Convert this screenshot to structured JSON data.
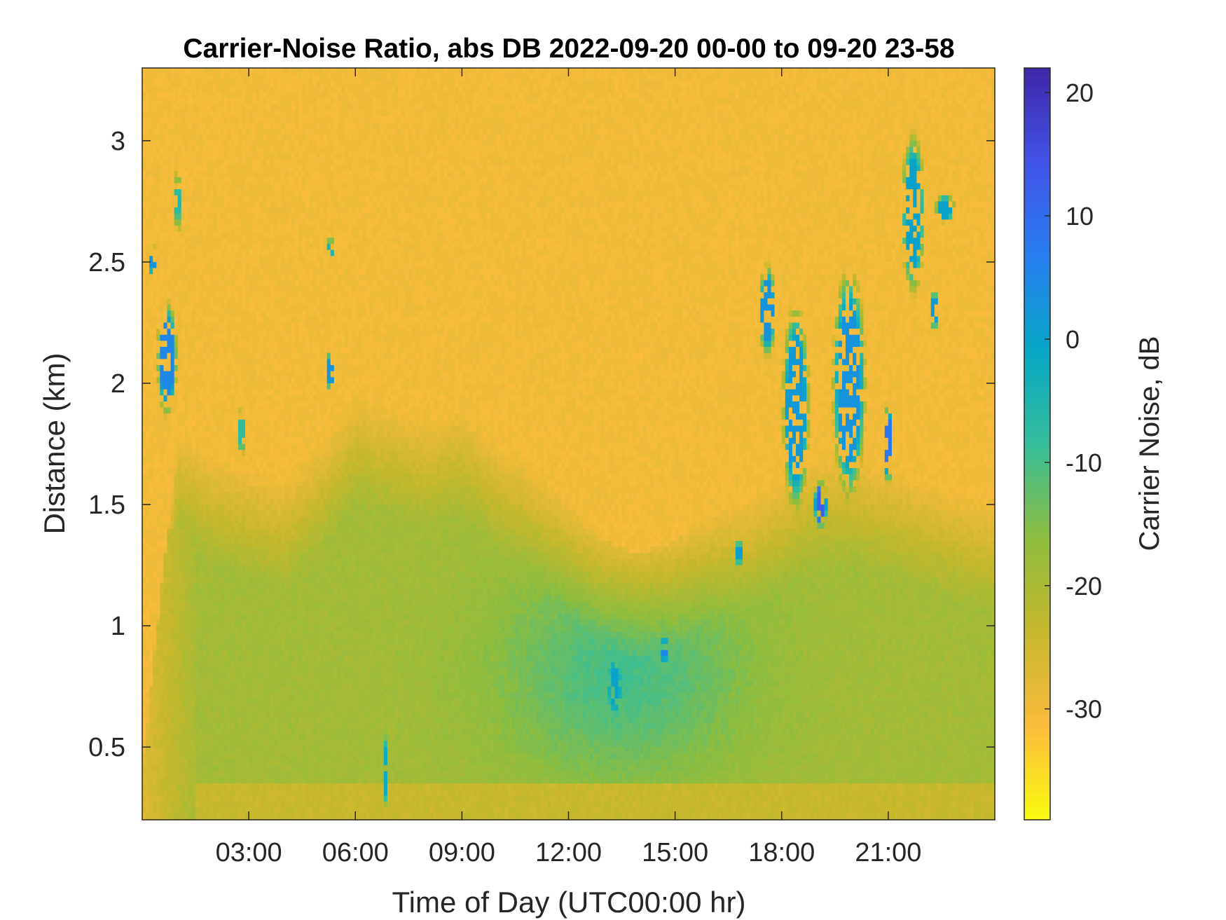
{
  "chart_data": {
    "type": "heatmap",
    "title": "Carrier-Noise Ratio, abs DB 2022-09-20 00-00 to 09-20 23-58",
    "xlabel": "Time of Day (UTC00:00 hr)",
    "ylabel": "Distance (km)",
    "colorbar_label": "Carrier Noise, dB",
    "x_units": "hours",
    "xlim": [
      0,
      24
    ],
    "ylim": [
      0.2,
      3.3
    ],
    "clim": [
      -39,
      22
    ],
    "x_ticks": [
      {
        "value": 3,
        "label": "03:00"
      },
      {
        "value": 6,
        "label": "06:00"
      },
      {
        "value": 9,
        "label": "09:00"
      },
      {
        "value": 12,
        "label": "12:00"
      },
      {
        "value": 15,
        "label": "15:00"
      },
      {
        "value": 18,
        "label": "18:00"
      },
      {
        "value": 21,
        "label": "21:00"
      }
    ],
    "y_ticks": [
      {
        "value": 0.5,
        "label": "0.5"
      },
      {
        "value": 1,
        "label": "1"
      },
      {
        "value": 1.5,
        "label": "1.5"
      },
      {
        "value": 2,
        "label": "2"
      },
      {
        "value": 2.5,
        "label": "2.5"
      },
      {
        "value": 3,
        "label": "3"
      }
    ],
    "colorbar_ticks": [
      {
        "value": 20,
        "label": "20"
      },
      {
        "value": 10,
        "label": "10"
      },
      {
        "value": 0,
        "label": "0"
      },
      {
        "value": -10,
        "label": "-10"
      },
      {
        "value": -20,
        "label": "-20"
      },
      {
        "value": -30,
        "label": "-30"
      }
    ],
    "colormap": "parula-reversed",
    "colormap_stops": [
      "#f9fb0e",
      "#fbbc3d",
      "#c6b82c",
      "#8ebd3e",
      "#35be9b",
      "#06a7c6",
      "#277ef1",
      "#4253e8",
      "#3e26a8"
    ],
    "background_level_dB": -30,
    "boundary_layer_top_km": [
      [
        0,
        0.4
      ],
      [
        1,
        1.8
      ],
      [
        2,
        1.7
      ],
      [
        3,
        1.65
      ],
      [
        4,
        1.6
      ],
      [
        5,
        1.75
      ],
      [
        6,
        1.95
      ],
      [
        7,
        1.9
      ],
      [
        8,
        1.85
      ],
      [
        9,
        1.9
      ],
      [
        10,
        1.75
      ],
      [
        11,
        1.65
      ],
      [
        12,
        1.5
      ],
      [
        13,
        1.35
      ],
      [
        14,
        1.3
      ],
      [
        15,
        1.35
      ],
      [
        16,
        1.45
      ],
      [
        17,
        1.5
      ],
      [
        18,
        1.6
      ],
      [
        19,
        1.7
      ],
      [
        20,
        1.7
      ],
      [
        21,
        1.65
      ],
      [
        22,
        1.6
      ],
      [
        23,
        1.55
      ],
      [
        24,
        1.5
      ]
    ],
    "features": [
      {
        "name": "cloud-0h",
        "t": 0.7,
        "d": 2.1,
        "width_h": 0.6,
        "height_km": 0.5,
        "value": 5
      },
      {
        "name": "cloud-0h-high",
        "t": 0.3,
        "d": 2.5,
        "width_h": 0.2,
        "height_km": 0.15,
        "value": 2
      },
      {
        "name": "cloud-0h-top",
        "t": 1.0,
        "d": 2.75,
        "width_h": 0.15,
        "height_km": 0.35,
        "value": -2
      },
      {
        "name": "cloud-2.8h",
        "t": 2.8,
        "d": 1.8,
        "width_h": 0.3,
        "height_km": 0.2,
        "value": -8
      },
      {
        "name": "cloud-5.3h",
        "t": 5.3,
        "d": 2.05,
        "width_h": 0.2,
        "height_km": 0.2,
        "value": 3
      },
      {
        "name": "cloud-5.3h-high",
        "t": 5.3,
        "d": 2.55,
        "width_h": 0.15,
        "height_km": 0.15,
        "value": 0
      },
      {
        "name": "plume-6.8h",
        "t": 6.85,
        "d": 0.4,
        "width_h": 0.15,
        "height_km": 0.3,
        "value": -2
      },
      {
        "name": "low-13.3h",
        "t": 13.3,
        "d": 0.75,
        "width_h": 0.4,
        "height_km": 0.25,
        "value": 0
      },
      {
        "name": "low-14.7h",
        "t": 14.7,
        "d": 0.9,
        "width_h": 0.2,
        "height_km": 0.12,
        "value": 5
      },
      {
        "name": "cloud-16.8h",
        "t": 16.8,
        "d": 1.3,
        "width_h": 0.15,
        "height_km": 0.15,
        "value": 5
      },
      {
        "name": "cloud-17.5h",
        "t": 17.6,
        "d": 2.3,
        "width_h": 0.5,
        "height_km": 0.4,
        "value": 3
      },
      {
        "name": "cloud-18.3h",
        "t": 18.4,
        "d": 1.9,
        "width_h": 0.8,
        "height_km": 0.9,
        "value": 2
      },
      {
        "name": "cloud-19.2h",
        "t": 19.1,
        "d": 1.5,
        "width_h": 0.4,
        "height_km": 0.2,
        "value": 12
      },
      {
        "name": "cloud-19.8h",
        "t": 19.9,
        "d": 2.0,
        "width_h": 1.0,
        "height_km": 1.0,
        "value": 3
      },
      {
        "name": "cloud-21h",
        "t": 21.0,
        "d": 1.75,
        "width_h": 0.3,
        "height_km": 0.35,
        "value": 8
      },
      {
        "name": "cloud-21.6h",
        "t": 21.7,
        "d": 2.7,
        "width_h": 0.7,
        "height_km": 0.7,
        "value": 0
      },
      {
        "name": "cloud-22.5h",
        "t": 22.6,
        "d": 2.72,
        "width_h": 0.6,
        "height_km": 0.12,
        "value": 0
      },
      {
        "name": "cloud-22.2h-low",
        "t": 22.3,
        "d": 2.3,
        "width_h": 0.2,
        "height_km": 0.2,
        "value": 2
      }
    ]
  }
}
